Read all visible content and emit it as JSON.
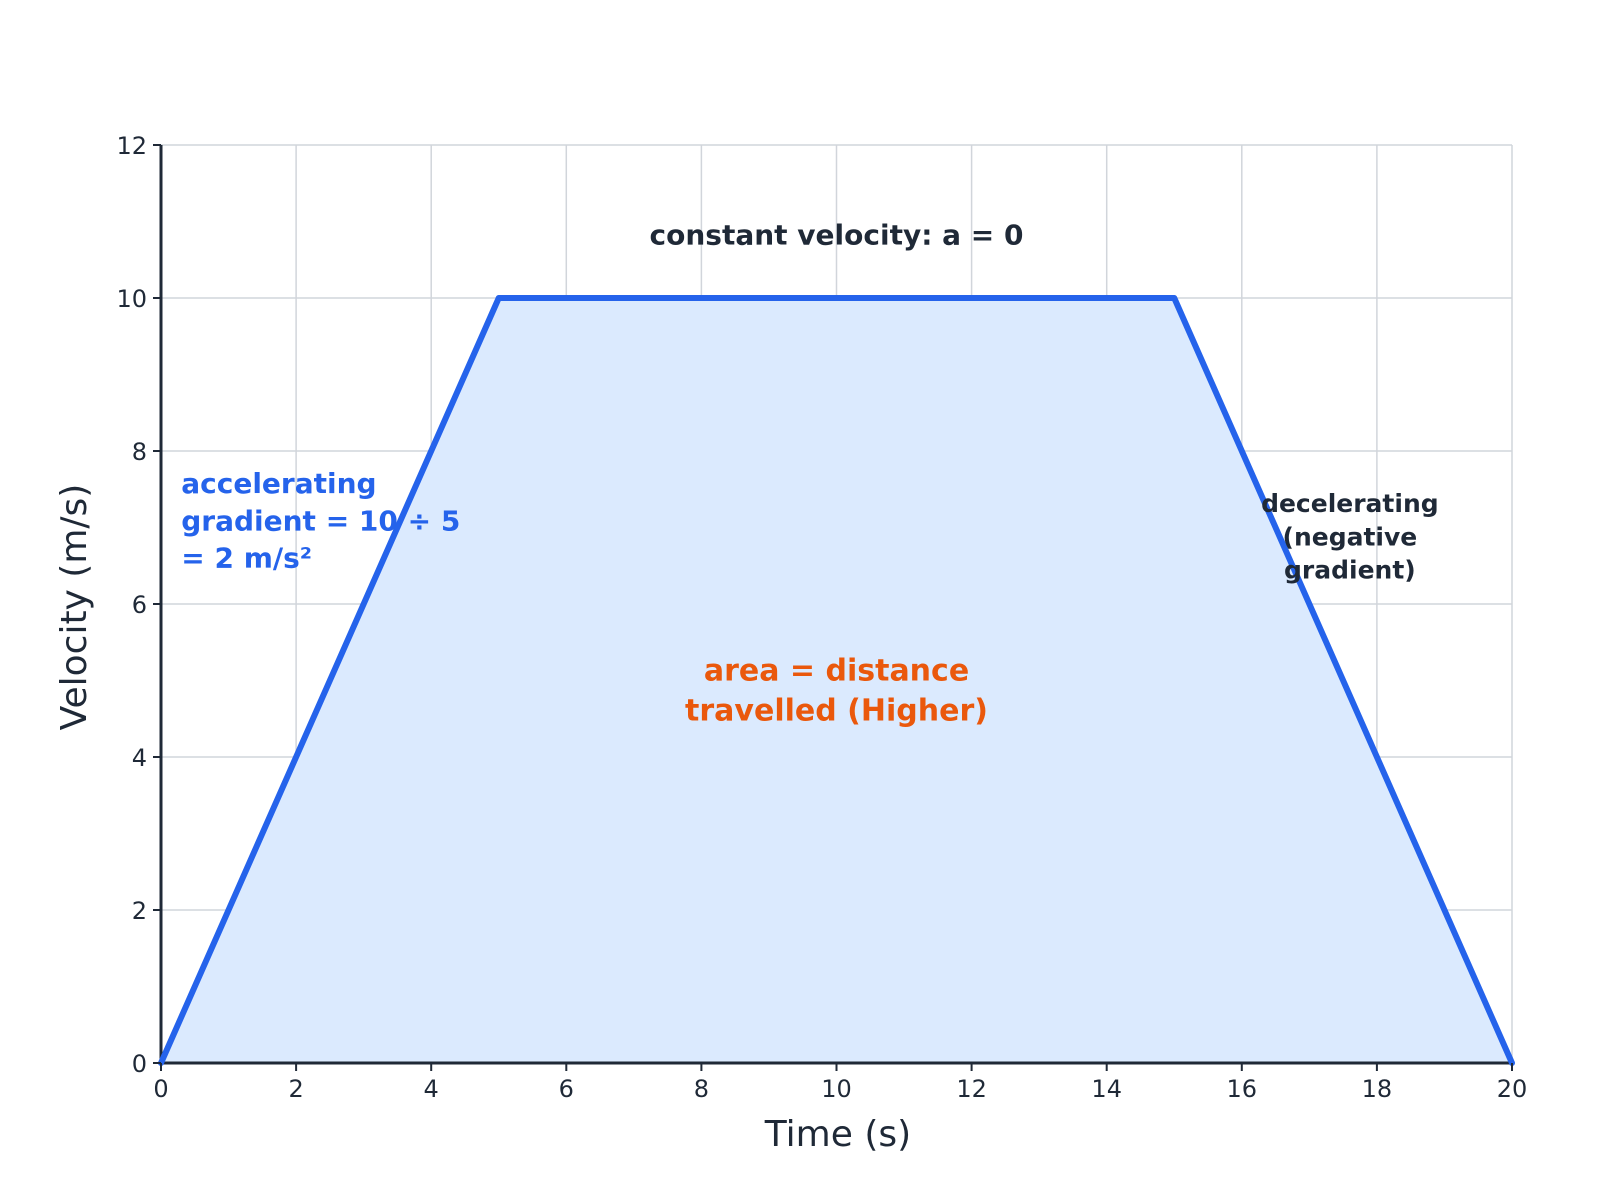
{
  "chart_data": {
    "type": "area",
    "title": "",
    "xlabel": "Time (s)",
    "ylabel": "Velocity (m/s)",
    "xlim": [
      0,
      20
    ],
    "ylim": [
      0,
      12
    ],
    "x_ticks": [
      0,
      2,
      4,
      6,
      8,
      10,
      12,
      14,
      16,
      18,
      20
    ],
    "y_ticks": [
      0,
      2,
      4,
      6,
      8,
      10,
      12
    ],
    "grid": true,
    "series": [
      {
        "x": [
          0,
          5,
          15,
          20
        ],
        "y": [
          0,
          10,
          10,
          0
        ]
      }
    ],
    "colors": {
      "line": "#2563eb",
      "fill": "#dbeafe",
      "grid": "#d1d5db",
      "axis": "#1f2937",
      "annot_accel": "#2563eb",
      "annot_area": "#ea580c",
      "annot_dark": "#1f2937"
    },
    "annotations": [
      {
        "id": "constant",
        "lines": [
          "constant velocity: a = 0"
        ],
        "x": 10,
        "y": 10.7,
        "anchor": "middle",
        "color": "#1f2937",
        "size": 28
      },
      {
        "id": "accelerating",
        "lines": [
          "accelerating",
          "gradient = 10 ÷ 5",
          "= 2 m/s²"
        ],
        "x": 0.3,
        "y": 7.45,
        "anchor": "start",
        "color": "#2563eb",
        "size": 28
      },
      {
        "id": "decelerating",
        "lines": [
          "decelerating",
          "(negative",
          "gradient)"
        ],
        "x": 17.6,
        "y": 7.2,
        "anchor": "middle",
        "color": "#1f2937",
        "size": 25
      },
      {
        "id": "area",
        "lines": [
          "area = distance",
          "travelled (Higher)"
        ],
        "x": 10,
        "y": 5.0,
        "anchor": "middle",
        "color": "#ea580c",
        "size": 30
      }
    ]
  }
}
